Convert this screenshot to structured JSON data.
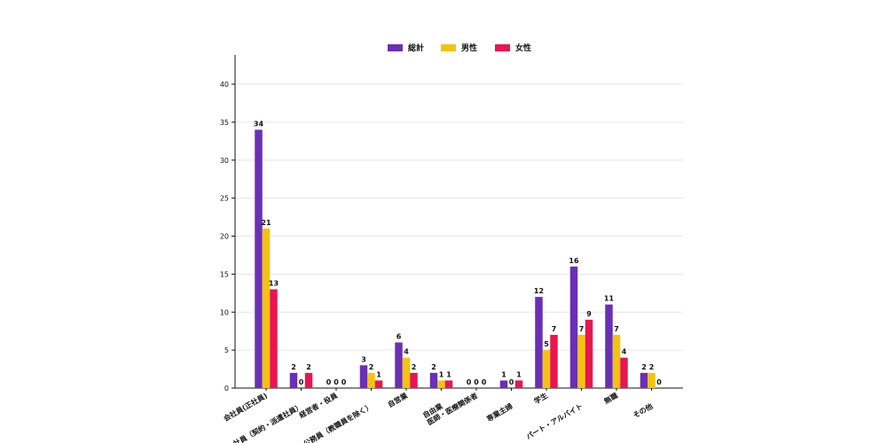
{
  "chart_data": {
    "type": "bar",
    "categories": [
      "会社員(正社員)",
      "会社員（契約・派遣社員）",
      "経営者・役員",
      "公務員（教職員を除く）",
      "自営業",
      "自由業",
      "医師・医療関係者",
      "専業主婦",
      "学生",
      "パート・アルバイト",
      "無職",
      "その他"
    ],
    "series": [
      {
        "name": "総計",
        "color": "#6a2fb5",
        "values": [
          34,
          2,
          0,
          3,
          6,
          2,
          0,
          1,
          12,
          16,
          11,
          2
        ]
      },
      {
        "name": "男性",
        "color": "#f5c211",
        "values": [
          21,
          0,
          0,
          2,
          4,
          1,
          0,
          0,
          5,
          7,
          7,
          2
        ]
      },
      {
        "name": "女性",
        "color": "#e8174f",
        "values": [
          13,
          2,
          0,
          1,
          2,
          1,
          0,
          1,
          7,
          9,
          4,
          0
        ]
      }
    ],
    "title": "",
    "xlabel": "",
    "ylabel": "",
    "ylim": [
      0,
      40
    ],
    "yticks": [
      0,
      5,
      10,
      15,
      20,
      25,
      30,
      35,
      40
    ],
    "grid": true,
    "legend_position": "top-center"
  }
}
